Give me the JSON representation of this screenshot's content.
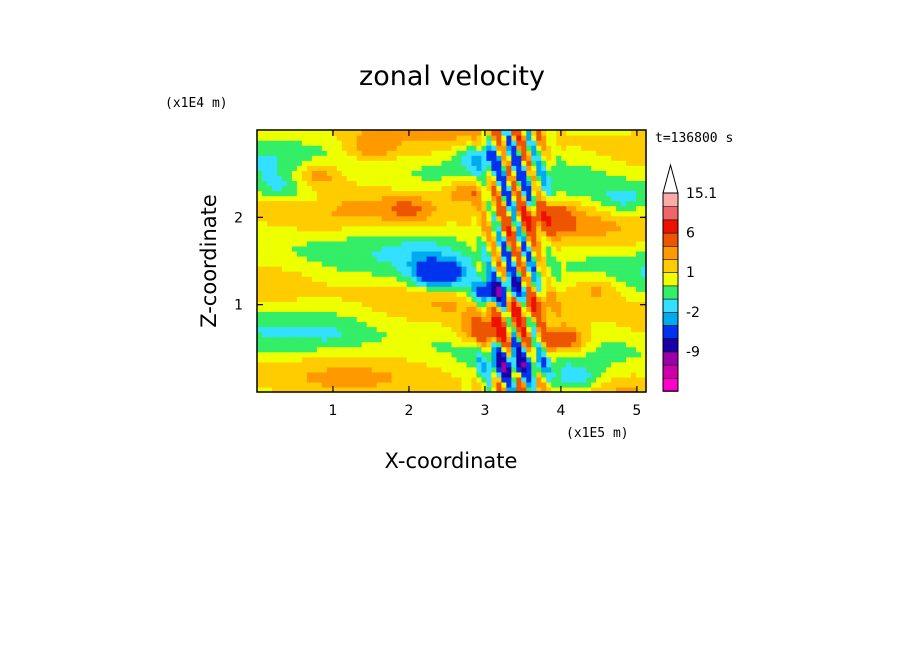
{
  "chart_data": {
    "type": "heatmap",
    "title": "zonal velocity",
    "xlabel": "X-coordinate",
    "ylabel": "Z-coordinate",
    "x_scale_label": "(x1E5 m)",
    "y_scale_label": "(x1E4 m)",
    "time_label": "t=136800 s",
    "xlim": [
      0,
      5.12
    ],
    "ylim": [
      0,
      3.0
    ],
    "x_ticks": [
      1,
      2,
      3,
      4,
      5
    ],
    "x_tick_labels": [
      "1",
      "2",
      "3",
      "4",
      "5"
    ],
    "y_ticks": [
      1,
      2
    ],
    "y_tick_labels": [
      "1",
      "2"
    ],
    "colorbar": {
      "levels": [
        -15,
        -12,
        -9,
        -6,
        -3,
        -2,
        -1,
        0,
        1,
        2,
        3,
        6,
        9,
        12,
        15.1
      ],
      "colors": [
        "#ff00cc",
        "#cc00aa",
        "#9900aa",
        "#1a00a8",
        "#0033ee",
        "#00aaee",
        "#33e0ff",
        "#33ee66",
        "#eeff00",
        "#ffcc00",
        "#ff9900",
        "#ee5500",
        "#ee1100",
        "#ee6666",
        "#ffaaaa",
        "#ffcccc"
      ],
      "labeled_levels": [
        {
          "label": "15.1",
          "value": 15.1
        },
        {
          "label": "6",
          "value": 6
        },
        {
          "label": "1",
          "value": 1
        },
        {
          "label": "-2",
          "value": -2
        },
        {
          "label": "-9",
          "value": -9
        }
      ]
    },
    "field_features": [
      {
        "x": 0.8,
        "z": 2.5,
        "u": 2.5
      },
      {
        "x": 1.5,
        "z": 2.8,
        "u": 2.0
      },
      {
        "x": 0.3,
        "z": 2.35,
        "u": -2.0
      },
      {
        "x": 0.7,
        "z": 2.2,
        "u": -1.0
      },
      {
        "x": 1.0,
        "z": 0.65,
        "u": -0.5
      },
      {
        "x": 2.2,
        "z": 1.6,
        "u": -0.8
      },
      {
        "x": 2.4,
        "z": 1.35,
        "u": -6.0
      },
      {
        "x": 3.2,
        "z": 1.15,
        "u": -9.0
      },
      {
        "x": 3.35,
        "z": 0.3,
        "u": -6.0
      },
      {
        "x": 3.1,
        "z": 0.7,
        "u": 6.0
      },
      {
        "x": 3.5,
        "z": 1.0,
        "u": 4.0
      },
      {
        "x": 3.8,
        "z": 2.0,
        "u": 4.0
      },
      {
        "x": 4.0,
        "z": 0.6,
        "u": 5.0
      },
      {
        "x": 4.5,
        "z": 1.2,
        "u": 2.0
      },
      {
        "x": 4.8,
        "z": 2.2,
        "u": -2.0
      },
      {
        "x": 3.0,
        "z": 2.7,
        "u": -3.0
      },
      {
        "x": 4.2,
        "z": 0.15,
        "u": -3.0
      },
      {
        "x": 2.0,
        "z": 2.1,
        "u": 2.0
      },
      {
        "x": 2.8,
        "z": 2.3,
        "u": 3.0
      }
    ]
  }
}
